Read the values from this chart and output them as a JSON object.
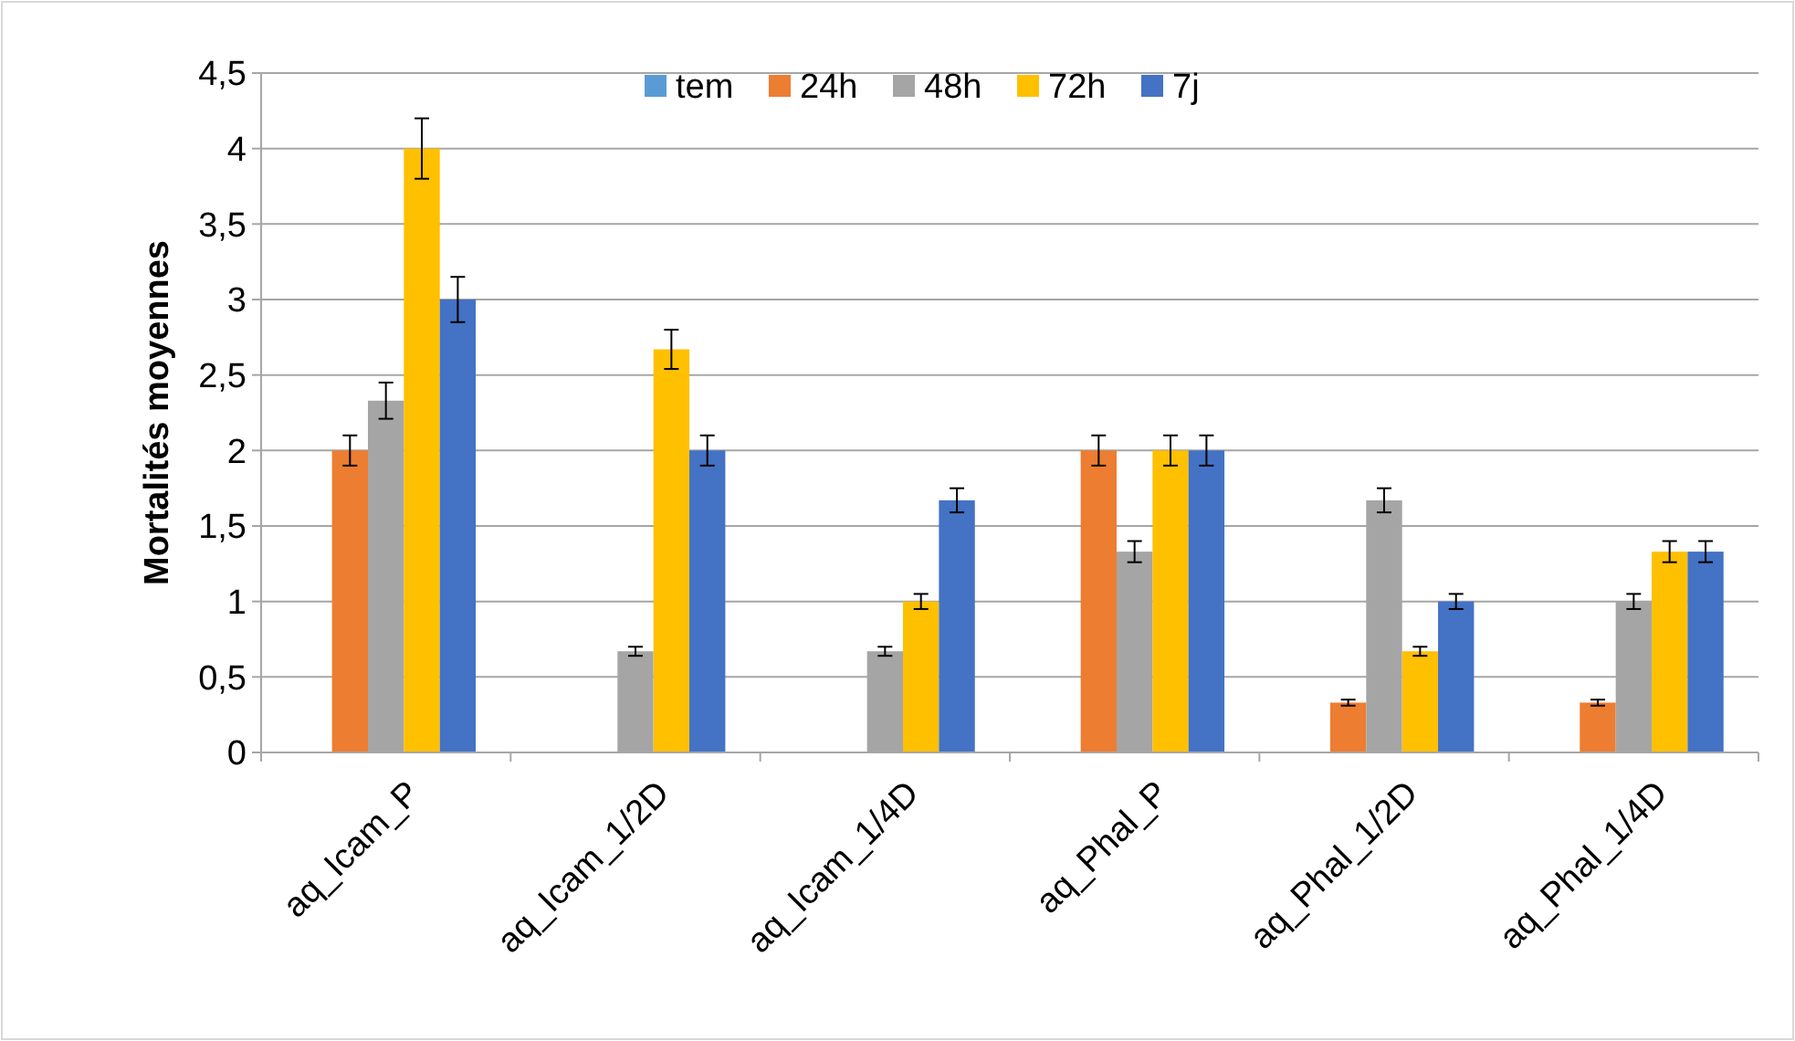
{
  "chart_data": {
    "type": "bar",
    "ylabel": "Mortalités moyennes",
    "categories": [
      "aq_Icam_P",
      "aq_Icam_1/2D",
      "aq_Icam_1/4D",
      "aq_Phal_P",
      "aq_Phal_1/2D",
      "aq_Phal_1/4D"
    ],
    "series": [
      {
        "name": "tem",
        "color": "#5b9bd5",
        "values": [
          0,
          0,
          0,
          0,
          0,
          0
        ]
      },
      {
        "name": "24h",
        "color": "#ed7d31",
        "values": [
          2,
          0,
          0,
          2,
          0.33,
          0.33
        ],
        "errors": [
          0.1,
          null,
          null,
          0.1,
          0.02,
          0.02
        ]
      },
      {
        "name": "48h",
        "color": "#a5a5a5",
        "values": [
          2.33,
          0.67,
          0.67,
          1.33,
          1.67,
          1
        ],
        "errors": [
          0.12,
          0.03,
          0.03,
          0.07,
          0.08,
          0.05
        ]
      },
      {
        "name": "72h",
        "color": "#ffc000",
        "values": [
          4,
          2.67,
          1,
          2,
          0.67,
          1.33
        ],
        "errors": [
          0.2,
          0.13,
          0.05,
          0.1,
          0.03,
          0.07
        ]
      },
      {
        "name": "7j",
        "color": "#4472c4",
        "values": [
          3,
          2,
          1.67,
          2,
          1,
          1.33
        ],
        "errors": [
          0.15,
          0.1,
          0.08,
          0.1,
          0.05,
          0.07
        ]
      }
    ],
    "ylim": [
      0,
      4.5
    ],
    "yticks": [
      0,
      {
        "value": 0.5,
        "label": "0,5"
      },
      1,
      {
        "value": 1.5,
        "label": "1,5"
      },
      2,
      {
        "value": 2.5,
        "label": "2,5"
      },
      3,
      {
        "value": 3.5,
        "label": "3,5"
      },
      4,
      {
        "value": 4.5,
        "label": "4,5"
      }
    ],
    "grid": "y",
    "legend": "top"
  }
}
